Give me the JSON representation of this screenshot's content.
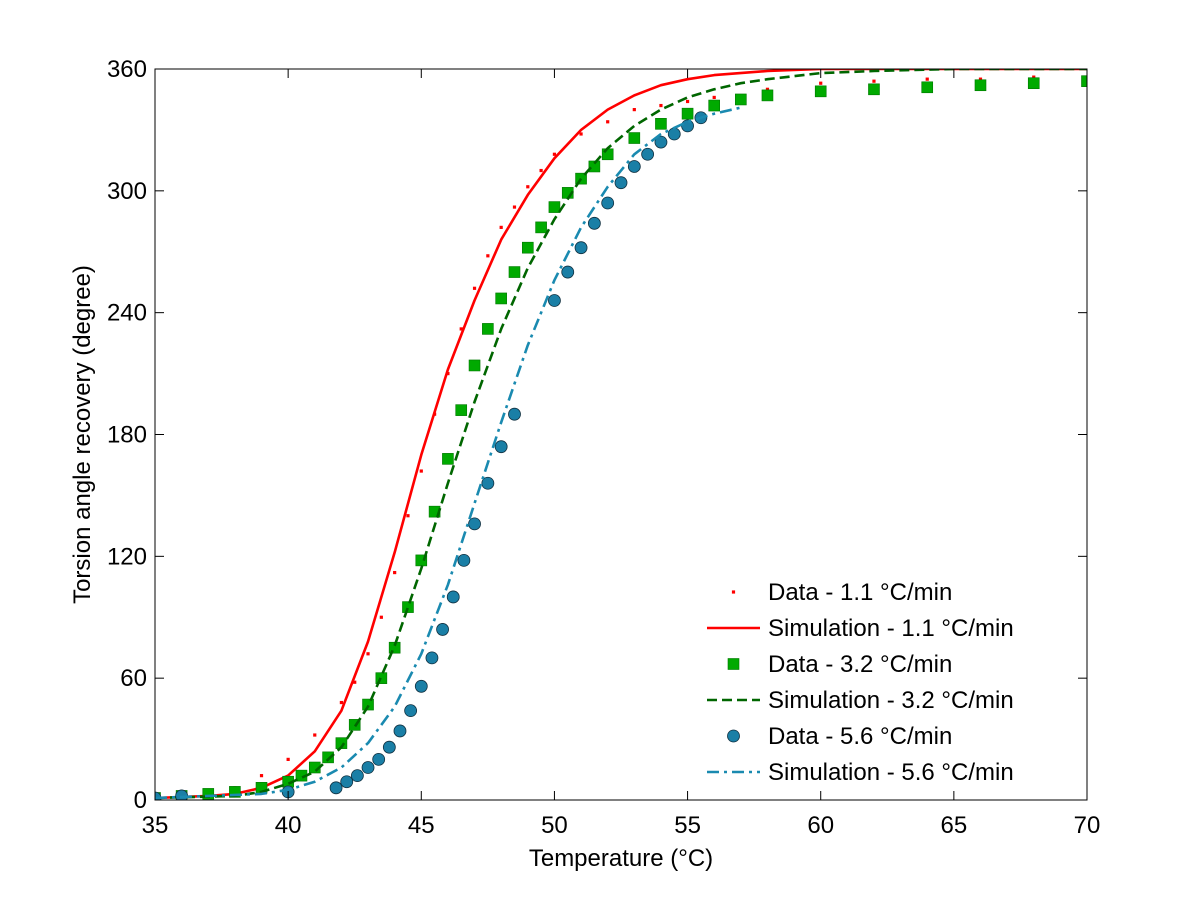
{
  "chart_data": {
    "type": "line",
    "title": "",
    "xlabel": "Temperature (°C)",
    "ylabel": "Torsion angle recovery (degree)",
    "xlim": [
      35,
      70
    ],
    "ylim": [
      0,
      360
    ],
    "xticks": [
      35,
      40,
      45,
      50,
      55,
      60,
      65,
      70
    ],
    "yticks": [
      0,
      60,
      120,
      180,
      240,
      300,
      360
    ],
    "grid": false,
    "legend_position": "bottom-right",
    "series": [
      {
        "name": "Data - 1.1 °C/min",
        "style": "points",
        "marker": "dot",
        "color": "#ff0000",
        "x": [
          35,
          36,
          37,
          38,
          39,
          40,
          41,
          42,
          42.5,
          43,
          43.5,
          44,
          44.5,
          45,
          45.5,
          46,
          46.5,
          47,
          47.5,
          48,
          48.5,
          49,
          49.5,
          50,
          51,
          52,
          53,
          54,
          55,
          56,
          58,
          60,
          62,
          64,
          66,
          68,
          70
        ],
        "y": [
          2,
          3,
          4,
          6,
          12,
          20,
          32,
          48,
          58,
          72,
          90,
          112,
          140,
          162,
          190,
          210,
          232,
          252,
          268,
          282,
          292,
          302,
          310,
          318,
          328,
          334,
          340,
          342,
          344,
          346,
          350,
          353,
          354,
          355,
          355,
          356,
          356
        ]
      },
      {
        "name": "Simulation - 1.1 °C/min",
        "style": "line",
        "dash": "solid",
        "color": "#ff0000",
        "x": [
          35,
          37,
          38,
          39,
          40,
          41,
          42,
          43,
          44,
          45,
          46,
          47,
          48,
          49,
          50,
          51,
          52,
          53,
          54,
          55,
          56,
          58,
          60,
          62,
          65,
          70
        ],
        "y": [
          1,
          2,
          3,
          6,
          12,
          24,
          44,
          78,
          122,
          170,
          212,
          246,
          276,
          298,
          316,
          330,
          340,
          347,
          352,
          355,
          357,
          359,
          360,
          360,
          360,
          360
        ]
      },
      {
        "name": "Data - 3.2 °C/min",
        "style": "points",
        "marker": "square",
        "color": "#00aa00",
        "x": [
          35,
          36,
          37,
          38,
          39,
          40,
          40.5,
          41,
          41.5,
          42,
          42.5,
          43,
          43.5,
          44,
          44.5,
          45,
          45.5,
          46,
          46.5,
          47,
          47.5,
          48,
          48.5,
          49,
          49.5,
          50,
          50.5,
          51,
          51.5,
          52,
          53,
          54,
          55,
          56,
          57,
          58,
          60,
          62,
          64,
          66,
          68,
          70
        ],
        "y": [
          1,
          2,
          3,
          4,
          6,
          9,
          12,
          16,
          21,
          28,
          37,
          47,
          60,
          75,
          95,
          118,
          142,
          168,
          192,
          214,
          232,
          247,
          260,
          272,
          282,
          292,
          299,
          306,
          312,
          318,
          326,
          333,
          338,
          342,
          345,
          347,
          349,
          350,
          351,
          352,
          353,
          354
        ]
      },
      {
        "name": "Simulation - 3.2 °C/min",
        "style": "line",
        "dash": "dashed",
        "color": "#006600",
        "x": [
          35,
          38,
          39,
          40,
          41,
          42,
          43,
          44,
          45,
          46,
          47,
          48,
          49,
          50,
          51,
          52,
          53,
          54,
          55,
          56,
          57,
          58,
          60,
          62,
          65,
          70
        ],
        "y": [
          1,
          2,
          4,
          8,
          14,
          26,
          46,
          76,
          114,
          156,
          196,
          232,
          262,
          286,
          306,
          321,
          332,
          340,
          346,
          350,
          353,
          355,
          358,
          359,
          360,
          360
        ]
      },
      {
        "name": "Data - 5.6 °C/min",
        "style": "points",
        "marker": "circle",
        "color": "#1a7fa6",
        "x": [
          35,
          36,
          40,
          41.8,
          42.2,
          42.6,
          43,
          43.4,
          43.8,
          44.2,
          44.6,
          45,
          45.4,
          45.8,
          46.2,
          46.6,
          47,
          47.5,
          48,
          48.5,
          50,
          50.5,
          51,
          51.5,
          52,
          52.5,
          53,
          53.5,
          54,
          54.5,
          55,
          55.5
        ],
        "y": [
          1,
          2,
          4,
          6,
          9,
          12,
          16,
          20,
          26,
          34,
          44,
          56,
          70,
          84,
          100,
          118,
          136,
          156,
          174,
          190,
          246,
          260,
          272,
          284,
          294,
          304,
          312,
          318,
          324,
          328,
          332,
          336
        ]
      },
      {
        "name": "Simulation - 5.6 °C/min",
        "style": "line",
        "dash": "dash-dot",
        "color": "#1a8ab0",
        "x": [
          35,
          39,
          40,
          41,
          42,
          43,
          44,
          45,
          46,
          47,
          48,
          49,
          50,
          51,
          52,
          53,
          54,
          55,
          56,
          57
        ],
        "y": [
          1,
          3,
          5,
          9,
          16,
          28,
          46,
          72,
          106,
          146,
          186,
          224,
          256,
          282,
          302,
          318,
          328,
          334,
          338,
          341
        ]
      }
    ]
  }
}
